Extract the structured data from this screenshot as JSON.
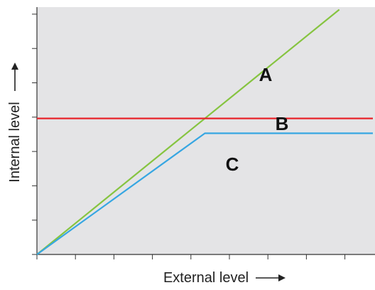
{
  "chart_data": {
    "type": "line",
    "xlabel": "External level",
    "ylabel": "Internal level",
    "xlim": [
      0,
      10
    ],
    "ylim": [
      0,
      10
    ],
    "grid": false,
    "tick_labels": false,
    "background": "#e4e4e6",
    "series": [
      {
        "name": "A",
        "color": "#86c440",
        "x": [
          0,
          9.9
        ],
        "y": [
          0,
          9.9
        ]
      },
      {
        "name": "B",
        "color": "#e8242b",
        "x": [
          0,
          11
        ],
        "y": [
          5.5,
          5.5
        ]
      },
      {
        "name": "C",
        "color": "#36a6e2",
        "x": [
          0,
          5.5,
          11
        ],
        "y": [
          0,
          4.9,
          4.9
        ]
      }
    ]
  }
}
